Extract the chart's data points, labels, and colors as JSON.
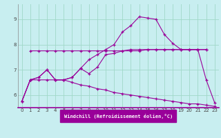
{
  "background_color": "#c8eef0",
  "grid_color": "#a0d8c8",
  "line_color": "#990099",
  "xlabel": "Windchill (Refroidissement éolien,°C)",
  "xlim": [
    -0.5,
    23.5
  ],
  "ylim": [
    5.5,
    9.6
  ],
  "yticks": [
    6,
    7,
    8,
    9
  ],
  "xticks": [
    0,
    1,
    2,
    3,
    4,
    5,
    6,
    7,
    8,
    9,
    10,
    11,
    12,
    13,
    14,
    15,
    16,
    17,
    18,
    19,
    20,
    21,
    22,
    23
  ],
  "series": [
    {
      "x": [
        1,
        2,
        3,
        4,
        5,
        6,
        7,
        8,
        9,
        10,
        11,
        12,
        13,
        14,
        15,
        16,
        17,
        18,
        19,
        20,
        21,
        22
      ],
      "y": [
        7.75,
        7.75,
        7.75,
        7.75,
        7.75,
        7.75,
        7.75,
        7.75,
        7.75,
        7.75,
        7.75,
        7.75,
        7.75,
        7.75,
        7.8,
        7.8,
        7.8,
        7.8,
        7.8,
        7.8,
        7.8,
        7.8
      ]
    },
    {
      "x": [
        0,
        1,
        2,
        3,
        4,
        5,
        6,
        7,
        8,
        9,
        10,
        11,
        12,
        13,
        14,
        15,
        16,
        17,
        18,
        19,
        20,
        21,
        22
      ],
      "y": [
        5.75,
        6.6,
        6.7,
        7.0,
        6.6,
        6.6,
        6.7,
        7.05,
        6.85,
        7.1,
        7.6,
        7.65,
        7.75,
        7.8,
        7.8,
        7.8,
        7.8,
        7.8,
        7.8,
        7.8,
        7.8,
        7.8,
        7.8
      ]
    },
    {
      "x": [
        0,
        1,
        2,
        3,
        4,
        5,
        6,
        7,
        8,
        9,
        10,
        11,
        12,
        13,
        14,
        15,
        16,
        17,
        18,
        19,
        20,
        21,
        22,
        23
      ],
      "y": [
        5.75,
        6.6,
        6.7,
        7.0,
        6.6,
        6.6,
        6.7,
        7.05,
        7.4,
        7.6,
        7.8,
        8.0,
        8.5,
        8.75,
        9.1,
        9.05,
        9.0,
        8.4,
        8.05,
        7.8,
        7.8,
        7.8,
        6.6,
        5.7
      ]
    },
    {
      "x": [
        0,
        1,
        2,
        3,
        4,
        5,
        6,
        7,
        8,
        9,
        10,
        11,
        12,
        13,
        14,
        15,
        16,
        17,
        18,
        19,
        20,
        21,
        22,
        23
      ],
      "y": [
        5.75,
        6.6,
        6.6,
        6.6,
        6.6,
        6.6,
        6.5,
        6.4,
        6.35,
        6.25,
        6.2,
        6.1,
        6.05,
        6.0,
        5.95,
        5.9,
        5.85,
        5.8,
        5.75,
        5.7,
        5.65,
        5.65,
        5.6,
        5.55
      ]
    }
  ]
}
